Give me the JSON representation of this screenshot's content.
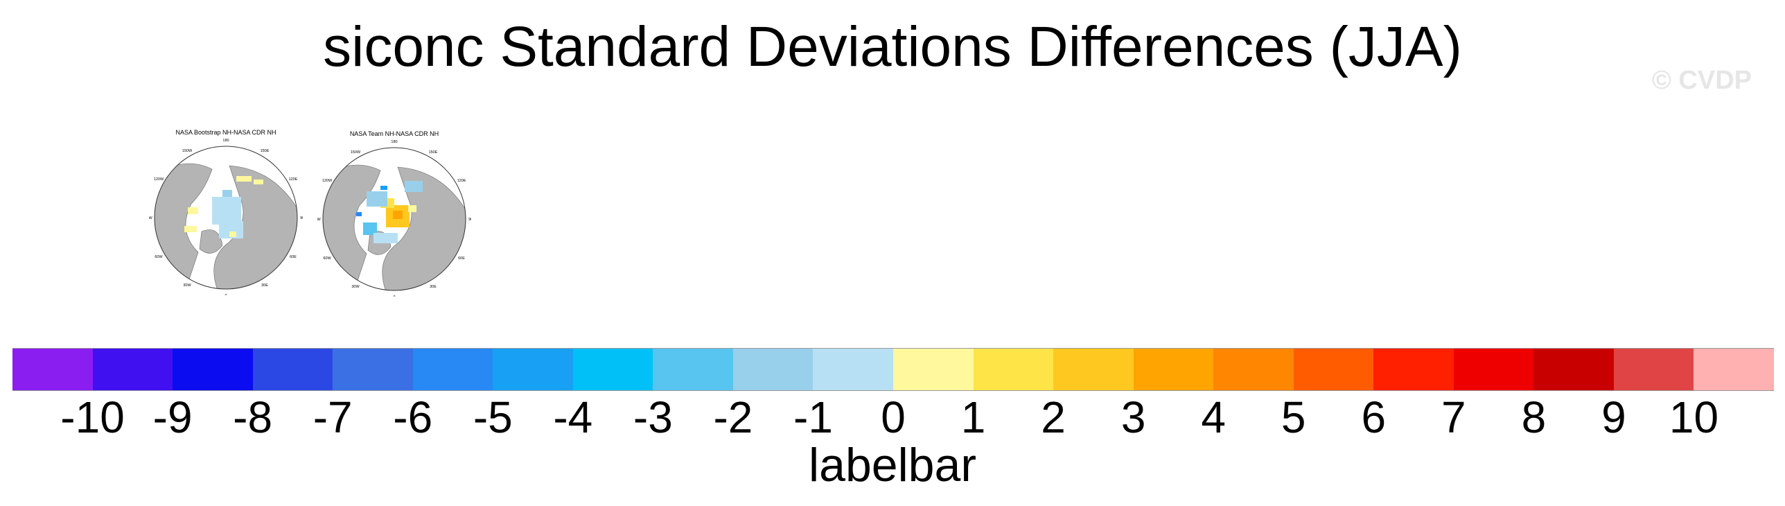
{
  "title": "siconc Standard Deviations Differences (JJA)",
  "watermark": "© CVDP",
  "chart_data": {
    "type": "heatmap",
    "title": "siconc Standard Deviations Differences (JJA)",
    "panels": [
      {
        "title": "NASA Bootstrap NH-NASA CDR NH",
        "lat_labels": [
          "180",
          "150W",
          "150E",
          "120W",
          "120E",
          "90W",
          "90E",
          "60W",
          "60E",
          "30W",
          "30E",
          "0"
        ]
      },
      {
        "title": "NASA Team NH-NASA CDR NH",
        "lat_labels": [
          "180",
          "150W",
          "150E",
          "120W",
          "120E",
          "90W",
          "90E",
          "60W",
          "60E",
          "30W",
          "30E",
          "0"
        ]
      }
    ],
    "colorbar": {
      "label": "labelbar",
      "ticks": [
        "-10",
        "-9",
        "-8",
        "-7",
        "-6",
        "-5",
        "-4",
        "-3",
        "-2",
        "-1",
        "0",
        "1",
        "2",
        "3",
        "4",
        "5",
        "6",
        "7",
        "8",
        "9",
        "10"
      ],
      "colors": [
        "#8a1ef0",
        "#4010f0",
        "#0c0cf0",
        "#2c48e4",
        "#3b70e4",
        "#2888f4",
        "#18a0f4",
        "#00c0f8",
        "#58c4f0",
        "#98d0ec",
        "#b8e0f4",
        "#fff89c",
        "#ffe448",
        "#ffc820",
        "#ffa400",
        "#ff8600",
        "#ff5c00",
        "#ff2000",
        "#ee0000",
        "#c80000",
        "#e04444",
        "#ffb0b0"
      ]
    }
  }
}
